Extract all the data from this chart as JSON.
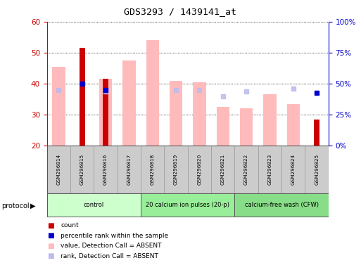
{
  "title": "GDS3293 / 1439141_at",
  "samples": [
    "GSM296814",
    "GSM296815",
    "GSM296816",
    "GSM296817",
    "GSM296818",
    "GSM296819",
    "GSM296820",
    "GSM296821",
    "GSM296822",
    "GSM296823",
    "GSM296824",
    "GSM296825"
  ],
  "value_absent": [
    45.5,
    null,
    41.5,
    47.5,
    54.0,
    41.0,
    40.5,
    32.5,
    32.0,
    36.5,
    33.5,
    null
  ],
  "rank_absent": [
    38.0,
    null,
    37.5,
    null,
    null,
    38.0,
    38.0,
    36.0,
    37.5,
    null,
    38.5,
    null
  ],
  "count": [
    null,
    51.5,
    41.5,
    null,
    null,
    null,
    null,
    null,
    null,
    null,
    null,
    28.5
  ],
  "percentile": [
    null,
    40.0,
    38.0,
    null,
    null,
    null,
    null,
    null,
    null,
    null,
    null,
    37.0
  ],
  "ylim_left": [
    20,
    60
  ],
  "ylim_right": [
    0,
    100
  ],
  "yticks_left": [
    20,
    30,
    40,
    50,
    60
  ],
  "yticks_right": [
    0,
    25,
    50,
    75,
    100
  ],
  "yticklabels_right": [
    "0%",
    "25%",
    "50%",
    "75%",
    "100%"
  ],
  "color_value_absent": "#ffbbbb",
  "color_rank_absent": "#bbbbee",
  "color_count": "#cc0000",
  "color_percentile": "#0000cc",
  "left_axis_color": "#cc0000",
  "right_axis_color": "#0000cc",
  "bg_color": "#ffffff",
  "proto_colors": [
    "#ccffcc",
    "#99ee99",
    "#88dd88"
  ],
  "proto_groups": [
    {
      "label": "control",
      "start": 0,
      "end": 3
    },
    {
      "label": "20 calcium ion pulses (20-p)",
      "start": 4,
      "end": 7
    },
    {
      "label": "calcium-free wash (CFW)",
      "start": 8,
      "end": 11
    }
  ]
}
